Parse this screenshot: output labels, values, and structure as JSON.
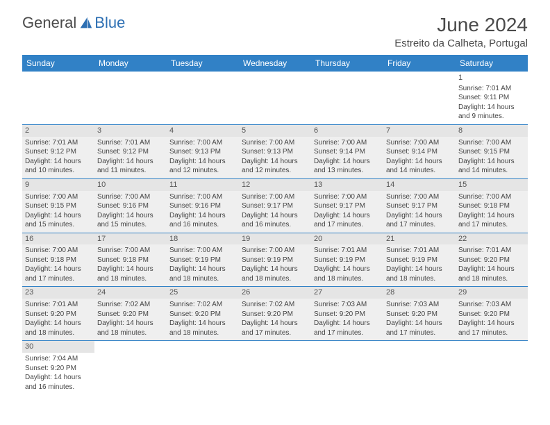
{
  "logo": {
    "text1": "General",
    "text2": "Blue"
  },
  "title": "June 2024",
  "location": "Estreito da Calheta, Portugal",
  "colors": {
    "header_bg": "#3181c6",
    "header_text": "#ffffff",
    "border": "#3181c6",
    "daynum_bg": "#e5e5e5",
    "text": "#444444"
  },
  "columns": [
    "Sunday",
    "Monday",
    "Tuesday",
    "Wednesday",
    "Thursday",
    "Friday",
    "Saturday"
  ],
  "weeks": [
    [
      null,
      null,
      null,
      null,
      null,
      null,
      {
        "n": "1",
        "sr": "7:01 AM",
        "ss": "9:11 PM",
        "dl": "14 hours and 9 minutes."
      }
    ],
    [
      {
        "n": "2",
        "sr": "7:01 AM",
        "ss": "9:12 PM",
        "dl": "14 hours and 10 minutes."
      },
      {
        "n": "3",
        "sr": "7:01 AM",
        "ss": "9:12 PM",
        "dl": "14 hours and 11 minutes."
      },
      {
        "n": "4",
        "sr": "7:00 AM",
        "ss": "9:13 PM",
        "dl": "14 hours and 12 minutes."
      },
      {
        "n": "5",
        "sr": "7:00 AM",
        "ss": "9:13 PM",
        "dl": "14 hours and 12 minutes."
      },
      {
        "n": "6",
        "sr": "7:00 AM",
        "ss": "9:14 PM",
        "dl": "14 hours and 13 minutes."
      },
      {
        "n": "7",
        "sr": "7:00 AM",
        "ss": "9:14 PM",
        "dl": "14 hours and 14 minutes."
      },
      {
        "n": "8",
        "sr": "7:00 AM",
        "ss": "9:15 PM",
        "dl": "14 hours and 14 minutes."
      }
    ],
    [
      {
        "n": "9",
        "sr": "7:00 AM",
        "ss": "9:15 PM",
        "dl": "14 hours and 15 minutes."
      },
      {
        "n": "10",
        "sr": "7:00 AM",
        "ss": "9:16 PM",
        "dl": "14 hours and 15 minutes."
      },
      {
        "n": "11",
        "sr": "7:00 AM",
        "ss": "9:16 PM",
        "dl": "14 hours and 16 minutes."
      },
      {
        "n": "12",
        "sr": "7:00 AM",
        "ss": "9:17 PM",
        "dl": "14 hours and 16 minutes."
      },
      {
        "n": "13",
        "sr": "7:00 AM",
        "ss": "9:17 PM",
        "dl": "14 hours and 17 minutes."
      },
      {
        "n": "14",
        "sr": "7:00 AM",
        "ss": "9:17 PM",
        "dl": "14 hours and 17 minutes."
      },
      {
        "n": "15",
        "sr": "7:00 AM",
        "ss": "9:18 PM",
        "dl": "14 hours and 17 minutes."
      }
    ],
    [
      {
        "n": "16",
        "sr": "7:00 AM",
        "ss": "9:18 PM",
        "dl": "14 hours and 17 minutes."
      },
      {
        "n": "17",
        "sr": "7:00 AM",
        "ss": "9:18 PM",
        "dl": "14 hours and 18 minutes."
      },
      {
        "n": "18",
        "sr": "7:00 AM",
        "ss": "9:19 PM",
        "dl": "14 hours and 18 minutes."
      },
      {
        "n": "19",
        "sr": "7:00 AM",
        "ss": "9:19 PM",
        "dl": "14 hours and 18 minutes."
      },
      {
        "n": "20",
        "sr": "7:01 AM",
        "ss": "9:19 PM",
        "dl": "14 hours and 18 minutes."
      },
      {
        "n": "21",
        "sr": "7:01 AM",
        "ss": "9:19 PM",
        "dl": "14 hours and 18 minutes."
      },
      {
        "n": "22",
        "sr": "7:01 AM",
        "ss": "9:20 PM",
        "dl": "14 hours and 18 minutes."
      }
    ],
    [
      {
        "n": "23",
        "sr": "7:01 AM",
        "ss": "9:20 PM",
        "dl": "14 hours and 18 minutes."
      },
      {
        "n": "24",
        "sr": "7:02 AM",
        "ss": "9:20 PM",
        "dl": "14 hours and 18 minutes."
      },
      {
        "n": "25",
        "sr": "7:02 AM",
        "ss": "9:20 PM",
        "dl": "14 hours and 18 minutes."
      },
      {
        "n": "26",
        "sr": "7:02 AM",
        "ss": "9:20 PM",
        "dl": "14 hours and 17 minutes."
      },
      {
        "n": "27",
        "sr": "7:03 AM",
        "ss": "9:20 PM",
        "dl": "14 hours and 17 minutes."
      },
      {
        "n": "28",
        "sr": "7:03 AM",
        "ss": "9:20 PM",
        "dl": "14 hours and 17 minutes."
      },
      {
        "n": "29",
        "sr": "7:03 AM",
        "ss": "9:20 PM",
        "dl": "14 hours and 17 minutes."
      }
    ],
    [
      {
        "n": "30",
        "sr": "7:04 AM",
        "ss": "9:20 PM",
        "dl": "14 hours and 16 minutes."
      },
      null,
      null,
      null,
      null,
      null,
      null
    ]
  ],
  "labels": {
    "sunrise": "Sunrise: ",
    "sunset": "Sunset: ",
    "daylight": "Daylight: "
  }
}
